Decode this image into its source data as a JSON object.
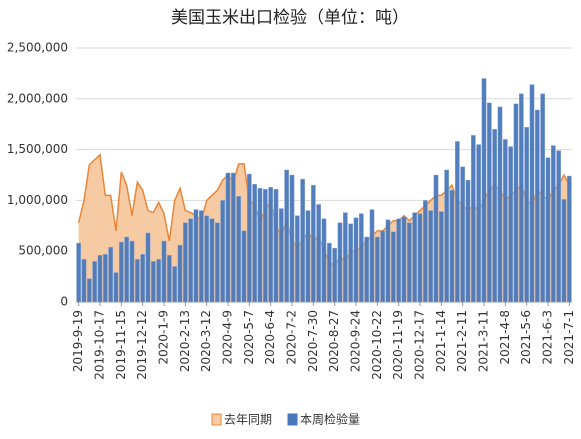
{
  "chart_data": {
    "type": "bar",
    "title": "美国玉米出口检验（单位：吨）",
    "categories": [
      "2019-9-19",
      null,
      null,
      null,
      "2019-10-17",
      null,
      null,
      null,
      "2019-11-15",
      null,
      null,
      null,
      "2019-12-12",
      null,
      null,
      null,
      "2020-1-9",
      null,
      null,
      null,
      "2020-2-13",
      null,
      null,
      null,
      "2020-3-12",
      null,
      null,
      null,
      "2020-4-9",
      null,
      null,
      null,
      "2020-5-7",
      null,
      null,
      null,
      "2020-6-4",
      null,
      null,
      null,
      "2020-7-2",
      null,
      null,
      null,
      "2020-7-30",
      null,
      null,
      null,
      "2020-8-27",
      null,
      null,
      null,
      "2020-9-24",
      null,
      null,
      null,
      "2020-10-22",
      null,
      null,
      null,
      "2020-11-19",
      null,
      null,
      null,
      "2020-12-17",
      null,
      null,
      null,
      "2021-1-14",
      null,
      null,
      null,
      "2021-2-11",
      null,
      null,
      null,
      "2021-3-11",
      null,
      null,
      null,
      "2021-4-8",
      null,
      null,
      null,
      "2021-5-6",
      null,
      null,
      null,
      "2021-6-3",
      null,
      null,
      null,
      "2021-7-1"
    ],
    "series": [
      {
        "name": "去年同期",
        "type": "area",
        "color": "#e8873a",
        "fill": "#f6caa2",
        "values": [
          780000,
          1000000,
          1350000,
          1400000,
          1450000,
          1050000,
          1050000,
          700000,
          1280000,
          1150000,
          850000,
          1180000,
          1100000,
          900000,
          880000,
          980000,
          870000,
          600000,
          1000000,
          1120000,
          900000,
          880000,
          850000,
          800000,
          1000000,
          1050000,
          1100000,
          1200000,
          1250000,
          1180000,
          1360000,
          1360000,
          1000000,
          950000,
          800000,
          900000,
          1000000,
          750000,
          650000,
          800000,
          600000,
          550000,
          600000,
          700000,
          600000,
          650000,
          500000,
          400000,
          350000,
          450000,
          400000,
          500000,
          500000,
          550000,
          600000,
          650000,
          700000,
          700000,
          750000,
          800000,
          800000,
          850000,
          800000,
          850000,
          900000,
          950000,
          1000000,
          1050000,
          1050000,
          1100000,
          1150000,
          1000000,
          950000,
          900000,
          950000,
          900000,
          1000000,
          1100000,
          1150000,
          1100000,
          1000000,
          1050000,
          1100000,
          1150000,
          1000000,
          950000,
          1100000,
          1050000,
          1000000,
          1100000,
          1150000,
          1250000,
          1150000
        ]
      },
      {
        "name": "本周检验量",
        "type": "bar",
        "color": "#4a77b9",
        "values": [
          580000,
          420000,
          230000,
          400000,
          460000,
          470000,
          540000,
          290000,
          590000,
          640000,
          600000,
          420000,
          470000,
          680000,
          400000,
          420000,
          600000,
          460000,
          350000,
          560000,
          780000,
          820000,
          910000,
          900000,
          850000,
          820000,
          780000,
          1000000,
          1270000,
          1270000,
          1040000,
          700000,
          1260000,
          1160000,
          1120000,
          1110000,
          1130000,
          1110000,
          920000,
          1300000,
          1250000,
          850000,
          1210000,
          900000,
          1150000,
          960000,
          820000,
          580000,
          530000,
          780000,
          880000,
          770000,
          830000,
          870000,
          640000,
          910000,
          640000,
          700000,
          810000,
          690000,
          820000,
          840000,
          780000,
          880000,
          870000,
          1000000,
          900000,
          1250000,
          890000,
          1300000,
          1100000,
          1580000,
          1330000,
          1200000,
          1640000,
          1550000,
          2200000,
          1960000,
          1700000,
          1920000,
          1600000,
          1530000,
          1950000,
          2050000,
          1720000,
          2140000,
          1890000,
          2050000,
          1420000,
          1540000,
          1490000,
          1010000,
          1240000
        ]
      }
    ],
    "ylim": [
      0,
      2500000
    ],
    "yticks": [
      0,
      {
        "value": 500000,
        "label": "500,000"
      },
      {
        "value": 1000000,
        "label": "1,000,000"
      },
      {
        "value": 1500000,
        "label": "1,500,000"
      },
      {
        "value": 2000000,
        "label": "2,000,000"
      },
      {
        "value": 2500000,
        "label": "2,500,000"
      }
    ],
    "grid": true
  }
}
